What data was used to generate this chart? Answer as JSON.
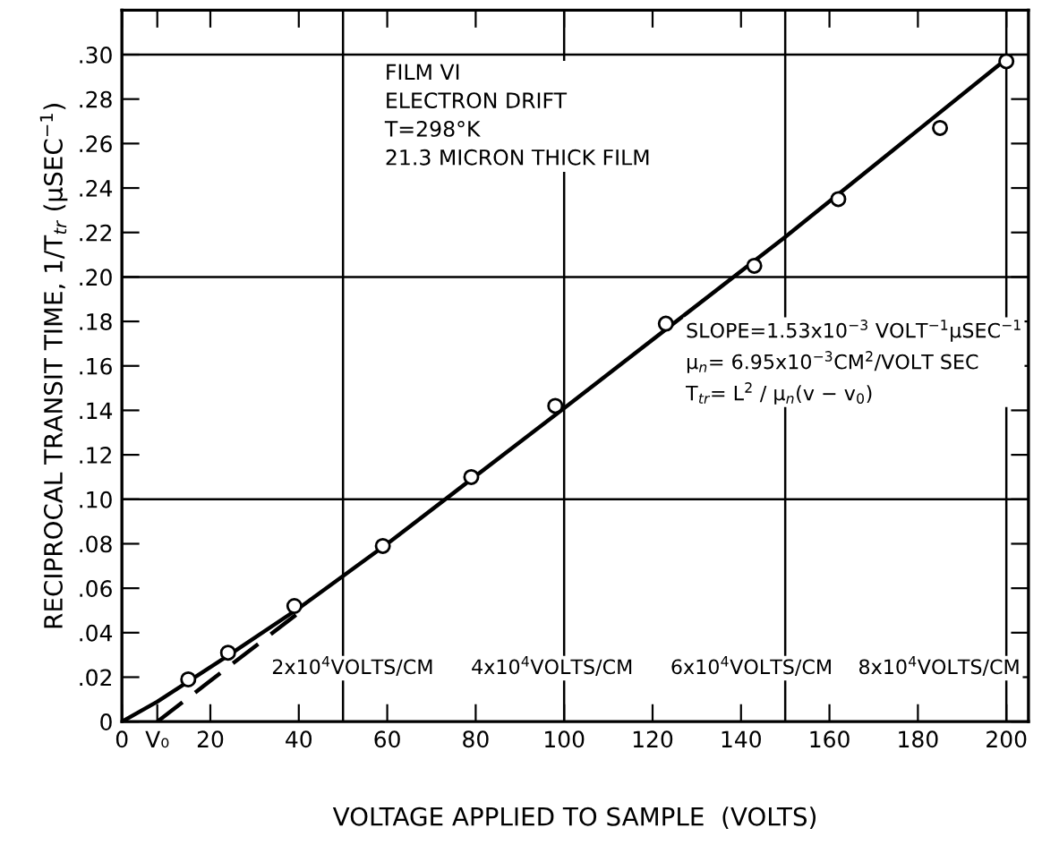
{
  "chart_data": {
    "type": "scatter",
    "xlabel": "VOLTAGE APPLIED TO SAMPLE  (VOLTS)",
    "ylabel": "RECIPROCAL TRANSIT TIME, 1/T$_{tr}$ (μSEC$^{−1}$)",
    "series": [
      {
        "color": "#000000",
        "marker": "circle",
        "x": [
          15,
          24,
          39,
          59,
          79,
          98,
          123,
          143,
          162,
          185,
          200
        ],
        "values": [
          0.019,
          0.031,
          0.052,
          0.079,
          0.11,
          0.142,
          0.179,
          0.205,
          0.235,
          0.267,
          0.297
        ]
      },
      {
        "type": "line",
        "color": "#000000",
        "line_style": "solid",
        "x": [
          0,
          8,
          15,
          25,
          40,
          60,
          100,
          150,
          200
        ],
        "values": [
          0,
          0.009,
          0.018,
          0.031,
          0.051,
          0.08,
          0.141,
          0.218,
          0.298
        ]
      },
      {
        "type": "line",
        "color": "#000000",
        "line_style": "dashed",
        "x": [
          8,
          40
        ],
        "values": [
          0,
          0.049
        ]
      }
    ],
    "xlim": [
      0,
      205
    ],
    "ylim": [
      0,
      0.32
    ],
    "xticks": [
      0,
      {
        "value": 8,
        "label": "V₀"
      },
      20,
      40,
      60,
      80,
      100,
      120,
      140,
      160,
      180,
      200
    ],
    "yticks": [
      0,
      {
        "value": 0.02,
        "label": ".02"
      },
      {
        "value": 0.04,
        "label": ".04"
      },
      {
        "value": 0.06,
        "label": ".06"
      },
      {
        "value": 0.08,
        "label": ".08"
      },
      {
        "value": 0.1,
        "label": ".10"
      },
      {
        "value": 0.12,
        "label": ".12"
      },
      {
        "value": 0.14,
        "label": ".14"
      },
      {
        "value": 0.16,
        "label": ".16"
      },
      {
        "value": 0.18,
        "label": ".18"
      },
      {
        "value": 0.2,
        "label": ".20"
      },
      {
        "value": 0.22,
        "label": ".22"
      },
      {
        "value": 0.24,
        "label": ".24"
      },
      {
        "value": 0.26,
        "label": ".26"
      },
      {
        "value": 0.28,
        "label": ".28"
      },
      {
        "value": 0.3,
        "label": ".30"
      }
    ],
    "ref_lines": [
      {
        "axis": "x",
        "value": 50,
        "color": "#000000"
      },
      {
        "axis": "x",
        "value": 100,
        "color": "#000000"
      },
      {
        "axis": "x",
        "value": 150,
        "color": "#000000"
      },
      {
        "axis": "x",
        "value": 200,
        "color": "#000000"
      },
      {
        "axis": "y",
        "value": 0.1,
        "color": "#000000"
      },
      {
        "axis": "y",
        "value": 0.2,
        "color": "#000000"
      },
      {
        "axis": "y",
        "value": 0.3,
        "color": "#000000"
      }
    ],
    "annotations": [
      "FILM VI\nELECTRON DRIFT\nT=298°K\n21.3 MICRON THICK FILM",
      "SLOPE=1.53x10$^{−3}$ VOLT$^{−1}$μSEC$^{−1}$\nμ$_{n}$= 6.95x10$^{−3}$CM$^{2}$/VOLT SEC\nT$_{tr}$= L$^{2}$ / μ$_{n}$(v − v$_{0}$)",
      "2x10$^{4}$VOLTS/CM",
      "4x10$^{4}$VOLTS/CM",
      "6x10$^{4}$VOLTS/CM",
      "8x10$^{4}$VOLTS/CM"
    ],
    "grid": false,
    "legend": false
  }
}
